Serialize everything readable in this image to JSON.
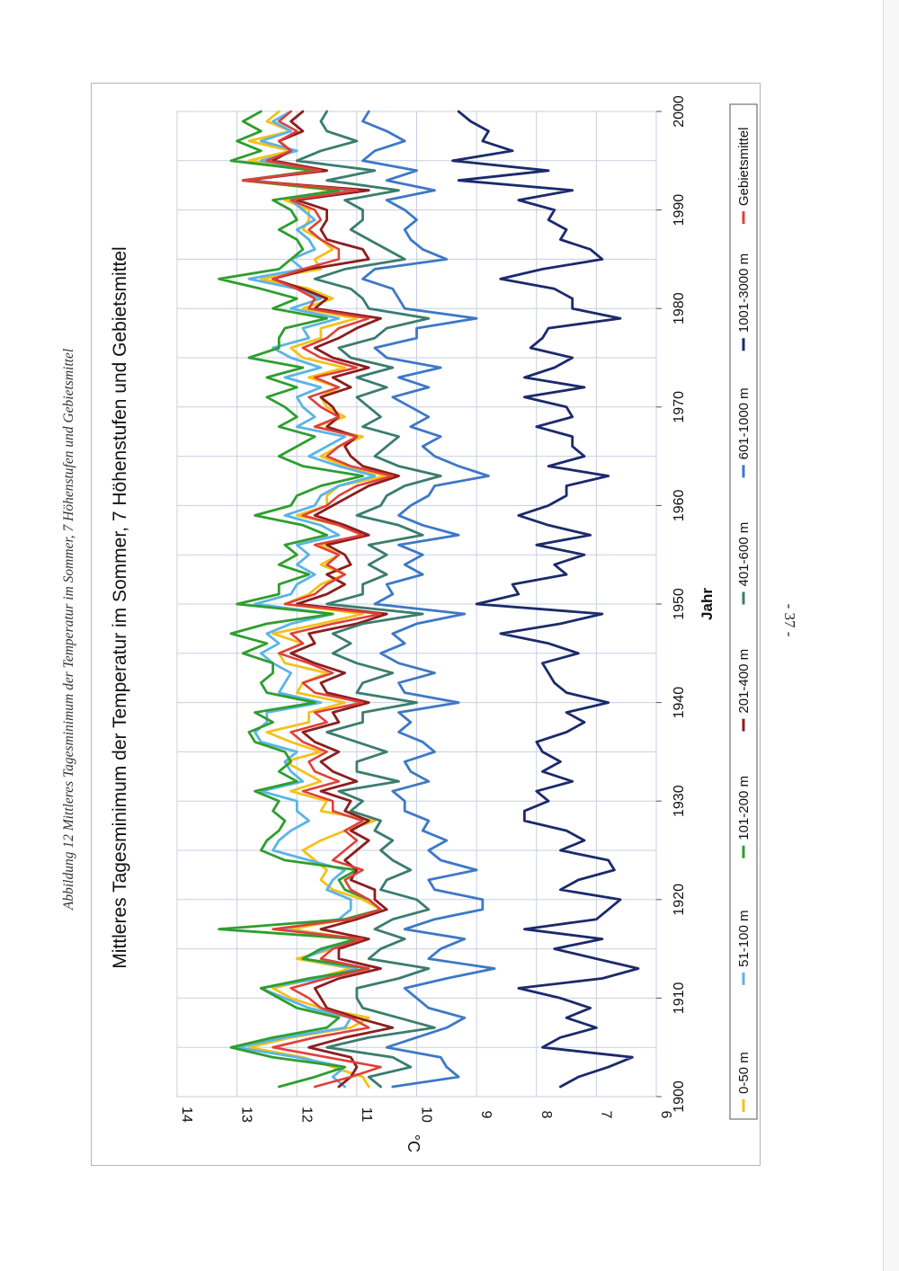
{
  "caption": "Abbildung 12 Mittleres Tagesminimum der Temperatur im Sommer, 7 Höhenstufen und Gebietsmittel",
  "page_number": "- 37 -",
  "chart_data": {
    "type": "line",
    "title": "Mittleres Tagesminimum der Temperatur im Sommer, 7 Höhenstufen und Gebietsmittel",
    "xlabel": "Jahr",
    "ylabel": "°C",
    "xlim": [
      1900,
      2000
    ],
    "ylim": [
      6,
      14
    ],
    "x_ticks": [
      1900,
      1910,
      1920,
      1930,
      1940,
      1950,
      1960,
      1970,
      1980,
      1990,
      2000
    ],
    "y_ticks": [
      6,
      7,
      8,
      9,
      10,
      11,
      12,
      13,
      14
    ],
    "grid": true,
    "legend_position": "bottom",
    "x": [
      1901,
      1902,
      1903,
      1904,
      1905,
      1906,
      1907,
      1908,
      1909,
      1910,
      1911,
      1912,
      1913,
      1914,
      1915,
      1916,
      1917,
      1918,
      1919,
      1920,
      1921,
      1922,
      1923,
      1924,
      1925,
      1926,
      1927,
      1928,
      1929,
      1930,
      1931,
      1932,
      1933,
      1934,
      1935,
      1936,
      1937,
      1938,
      1939,
      1940,
      1941,
      1942,
      1943,
      1944,
      1945,
      1946,
      1947,
      1948,
      1949,
      1950,
      1951,
      1952,
      1953,
      1954,
      1955,
      1956,
      1957,
      1958,
      1959,
      1960,
      1961,
      1962,
      1963,
      1964,
      1965,
      1966,
      1967,
      1968,
      1969,
      1970,
      1971,
      1972,
      1973,
      1974,
      1975,
      1976,
      1977,
      1978,
      1979,
      1980,
      1981,
      1982,
      1983,
      1984,
      1985,
      1986,
      1987,
      1988,
      1989,
      1990,
      1991,
      1992,
      1993,
      1994,
      1995,
      1996,
      1997,
      1998,
      1999,
      2000
    ],
    "series": [
      {
        "name": "0-50 m",
        "color": "#f2c21b",
        "values": [
          10.8,
          10.9,
          11.4,
          11.9,
          12.8,
          12.1,
          11.1,
          10.8,
          11.6,
          12.1,
          12.4,
          11.7,
          11.1,
          12.0,
          11.4,
          11.0,
          12.1,
          11.2,
          10.6,
          10.9,
          11.4,
          11.6,
          11.5,
          11.7,
          11.9,
          11.6,
          11.2,
          10.7,
          11.6,
          11.5,
          12.1,
          11.6,
          11.9,
          12.2,
          11.6,
          12.1,
          12.5,
          11.8,
          11.8,
          11.2,
          12.0,
          11.9,
          11.5,
          12.2,
          12.3,
          11.9,
          12.4,
          11.6,
          10.9,
          12.2,
          11.8,
          11.6,
          11.2,
          11.6,
          11.3,
          11.6,
          10.9,
          11.3,
          12.0,
          11.5,
          11.5,
          11.3,
          10.5,
          11.2,
          11.6,
          11.3,
          10.9,
          11.7,
          11.2,
          11.5,
          11.6,
          11.3,
          11.8,
          11.2,
          11.9,
          12.1,
          11.6,
          11.6,
          11.0,
          11.9,
          11.4,
          11.8,
          12.6,
          11.6,
          11.7,
          11.4,
          11.6,
          11.9,
          11.8,
          11.8,
          12.2,
          11.4,
          12.9,
          11.7,
          12.8,
          12.1,
          12.8,
          12.1,
          12.5,
          12.3
        ]
      },
      {
        "name": "51-100 m",
        "color": "#5ab4e6",
        "values": [
          11.2,
          11.4,
          11.2,
          12.0,
          13.0,
          12.2,
          11.2,
          11.1,
          11.8,
          12.2,
          12.6,
          11.6,
          11.0,
          11.9,
          11.5,
          11.0,
          12.3,
          11.3,
          11.1,
          11.1,
          11.5,
          11.4,
          11.2,
          11.8,
          12.4,
          12.3,
          12.1,
          11.8,
          12.0,
          12.0,
          12.6,
          11.9,
          12.1,
          12.2,
          12.0,
          12.6,
          12.7,
          12.5,
          12.5,
          11.6,
          12.3,
          12.2,
          12.1,
          12.4,
          12.6,
          12.3,
          12.5,
          12.1,
          11.4,
          12.7,
          12.1,
          12.0,
          11.7,
          12.0,
          11.8,
          12.0,
          11.3,
          11.6,
          12.2,
          11.7,
          11.6,
          11.3,
          10.7,
          11.3,
          11.8,
          11.5,
          11.2,
          12.0,
          11.7,
          11.9,
          12.0,
          11.6,
          12.2,
          11.6,
          12.1,
          12.4,
          11.8,
          11.9,
          11.3,
          12.1,
          11.6,
          12.0,
          12.8,
          11.9,
          12.1,
          11.7,
          11.8,
          12.0,
          11.7,
          11.9,
          12.1,
          11.1,
          12.8,
          11.6,
          12.6,
          12.0,
          12.6,
          12.1,
          12.4,
          12.1
        ]
      },
      {
        "name": "101-200 m",
        "color": "#2e9e2e",
        "values": [
          12.3,
          11.7,
          11.2,
          12.4,
          13.1,
          12.4,
          11.5,
          11.3,
          12.0,
          12.3,
          12.6,
          11.8,
          10.8,
          11.9,
          11.6,
          11.0,
          13.3,
          11.2,
          10.6,
          10.8,
          11.2,
          11.3,
          11.0,
          12.2,
          12.6,
          12.5,
          12.3,
          12.2,
          12.4,
          12.3,
          12.7,
          12.0,
          12.3,
          12.1,
          12.2,
          12.7,
          12.8,
          12.4,
          12.7,
          11.7,
          12.5,
          12.6,
          12.4,
          12.4,
          12.9,
          12.5,
          13.1,
          12.5,
          11.4,
          13.0,
          12.3,
          12.3,
          11.8,
          12.3,
          12.0,
          12.2,
          11.5,
          11.9,
          12.7,
          12.1,
          12.0,
          11.6,
          10.9,
          11.9,
          12.3,
          12.0,
          11.7,
          12.3,
          12.0,
          12.2,
          12.5,
          12.0,
          12.5,
          11.9,
          12.8,
          12.3,
          12.3,
          12.2,
          11.5,
          12.4,
          12.0,
          12.6,
          13.3,
          12.3,
          12.1,
          11.9,
          12.0,
          12.3,
          12.0,
          12.1,
          12.4,
          11.3,
          12.9,
          11.7,
          13.1,
          12.6,
          13.0,
          12.6,
          12.9,
          12.6
        ]
      },
      {
        "name": "201-400 m",
        "color": "#8b1e1e",
        "values": [
          11.3,
          11.1,
          11.0,
          11.1,
          11.8,
          11.2,
          10.4,
          11.0,
          11.5,
          11.6,
          11.7,
          11.3,
          10.6,
          11.3,
          11.3,
          10.8,
          11.6,
          11.0,
          10.5,
          10.7,
          10.7,
          11.1,
          11.0,
          11.2,
          11.0,
          10.8,
          11.1,
          10.8,
          11.2,
          11.1,
          11.6,
          11.0,
          11.4,
          11.6,
          11.3,
          11.7,
          11.9,
          11.3,
          11.4,
          10.8,
          11.5,
          11.6,
          11.2,
          11.7,
          12.1,
          11.7,
          11.8,
          11.0,
          10.5,
          12.0,
          11.5,
          11.2,
          11.5,
          11.1,
          11.2,
          11.5,
          10.8,
          11.2,
          11.7,
          11.4,
          11.1,
          10.8,
          10.3,
          10.9,
          11.1,
          11.2,
          11.0,
          11.5,
          11.3,
          11.4,
          11.6,
          11.1,
          11.4,
          10.8,
          11.4,
          11.7,
          11.3,
          11.0,
          10.6,
          11.7,
          11.5,
          11.9,
          12.4,
          11.8,
          10.8,
          10.9,
          11.5,
          11.6,
          11.5,
          11.5,
          12.0,
          10.8,
          12.9,
          11.5,
          12.4,
          12.1,
          12.3,
          11.9,
          12.1,
          11.9
        ]
      },
      {
        "name": "401-600 m",
        "color": "#3a7d6e",
        "values": [
          10.6,
          10.8,
          10.1,
          10.4,
          11.5,
          10.8,
          9.7,
          10.3,
          10.9,
          11.0,
          11.0,
          10.3,
          9.8,
          10.8,
          10.6,
          10.2,
          10.7,
          10.4,
          9.8,
          10.0,
          10.6,
          10.5,
          10.1,
          10.4,
          10.6,
          10.4,
          10.7,
          10.6,
          11.1,
          10.9,
          11.3,
          10.3,
          11.0,
          11.0,
          10.5,
          11.0,
          11.5,
          10.9,
          10.9,
          10.0,
          11.0,
          10.9,
          10.4,
          11.0,
          11.4,
          11.1,
          11.4,
          10.9,
          9.9,
          11.5,
          10.9,
          10.9,
          10.5,
          10.8,
          10.5,
          10.8,
          9.9,
          10.3,
          11.0,
          10.6,
          10.5,
          10.2,
          9.6,
          10.3,
          10.7,
          10.5,
          10.3,
          10.9,
          10.6,
          10.8,
          11.0,
          10.5,
          11.0,
          10.4,
          11.1,
          11.3,
          10.7,
          10.5,
          9.8,
          10.8,
          10.9,
          11.1,
          11.7,
          11.2,
          10.2,
          10.5,
          10.8,
          11.1,
          10.9,
          10.9,
          11.2,
          10.3,
          11.5,
          10.7,
          12.0,
          11.6,
          11.0,
          11.5,
          11.6,
          11.5
        ]
      },
      {
        "name": "601-1000 m",
        "color": "#3d78c7",
        "values": [
          10.4,
          9.3,
          9.5,
          9.6,
          10.5,
          10.0,
          9.5,
          9.2,
          9.8,
          10.0,
          10.2,
          9.5,
          8.7,
          9.8,
          9.6,
          9.2,
          10.2,
          9.7,
          8.9,
          8.9,
          9.7,
          9.8,
          9.0,
          9.6,
          9.8,
          9.5,
          9.9,
          9.8,
          10.2,
          10.2,
          10.4,
          9.8,
          10.1,
          10.2,
          9.7,
          9.9,
          10.3,
          10.1,
          10.3,
          9.3,
          10.2,
          10.3,
          9.7,
          10.3,
          10.6,
          10.2,
          10.4,
          10.0,
          9.2,
          10.7,
          10.4,
          10.5,
          9.9,
          10.2,
          9.9,
          10.3,
          9.3,
          9.9,
          10.3,
          10.1,
          9.8,
          9.7,
          8.8,
          9.3,
          9.7,
          9.9,
          9.6,
          10.1,
          9.8,
          10.1,
          10.4,
          9.8,
          10.3,
          9.6,
          10.5,
          10.7,
          10.0,
          10.0,
          9.0,
          10.2,
          10.3,
          10.4,
          10.9,
          10.7,
          9.5,
          9.9,
          10.1,
          10.2,
          10.0,
          10.2,
          10.5,
          9.7,
          10.5,
          10.0,
          10.9,
          10.7,
          10.2,
          10.5,
          10.9,
          10.8
        ]
      },
      {
        "name": "1001-3000 m",
        "color": "#1b2a6b",
        "values": [
          7.6,
          7.3,
          6.8,
          6.4,
          7.9,
          7.6,
          7.0,
          7.5,
          7.1,
          7.6,
          8.3,
          6.9,
          6.3,
          7.0,
          7.7,
          6.9,
          8.2,
          7.0,
          6.8,
          6.6,
          7.6,
          7.3,
          6.7,
          6.8,
          7.6,
          7.2,
          7.5,
          8.2,
          8.2,
          7.8,
          8.0,
          7.4,
          7.9,
          7.6,
          7.9,
          8.0,
          7.5,
          7.2,
          7.5,
          6.8,
          7.5,
          7.7,
          7.8,
          7.9,
          7.3,
          7.8,
          8.6,
          7.6,
          6.9,
          9.0,
          8.3,
          8.4,
          7.5,
          7.7,
          7.2,
          8.0,
          7.1,
          7.8,
          8.3,
          7.8,
          7.5,
          7.5,
          6.8,
          7.8,
          7.2,
          7.4,
          7.4,
          8.0,
          7.4,
          7.5,
          8.2,
          7.2,
          8.2,
          7.7,
          7.4,
          8.1,
          7.9,
          7.8,
          6.6,
          7.4,
          7.4,
          7.7,
          8.6,
          7.9,
          6.9,
          7.1,
          7.6,
          7.5,
          7.8,
          7.7,
          8.3,
          7.4,
          9.3,
          7.8,
          9.4,
          8.4,
          8.9,
          8.8,
          9.1,
          9.3
        ]
      },
      {
        "name": "Gebietsmittel",
        "color": "#e0403a",
        "values": [
          11.7,
          11.1,
          10.6,
          11.5,
          12.4,
          11.7,
          10.8,
          11.1,
          11.6,
          11.8,
          12.1,
          11.5,
          10.8,
          11.6,
          11.4,
          10.9,
          12.4,
          11.1,
          10.6,
          10.8,
          11.1,
          11.2,
          10.9,
          11.4,
          11.2,
          11.0,
          11.2,
          10.9,
          11.4,
          11.4,
          11.9,
          11.3,
          11.7,
          11.8,
          11.5,
          11.9,
          12.1,
          11.5,
          11.7,
          10.9,
          11.7,
          11.9,
          11.4,
          11.8,
          12.3,
          11.9,
          12.1,
          11.4,
          10.6,
          12.2,
          11.7,
          11.5,
          11.2,
          11.5,
          11.3,
          11.7,
          10.9,
          11.3,
          11.9,
          11.5,
          11.3,
          11.0,
          10.4,
          11.1,
          11.5,
          11.3,
          11.0,
          11.7,
          11.3,
          11.6,
          11.8,
          11.3,
          11.7,
          11.0,
          11.6,
          11.9,
          11.5,
          11.3,
          10.8,
          11.8,
          11.7,
          12.0,
          12.4,
          11.9,
          11.3,
          11.3,
          11.6,
          11.8,
          11.6,
          11.7,
          12.1,
          11.0,
          12.9,
          11.6,
          12.5,
          12.1,
          12.3,
          12.0,
          12.3,
          12.1
        ]
      }
    ]
  }
}
